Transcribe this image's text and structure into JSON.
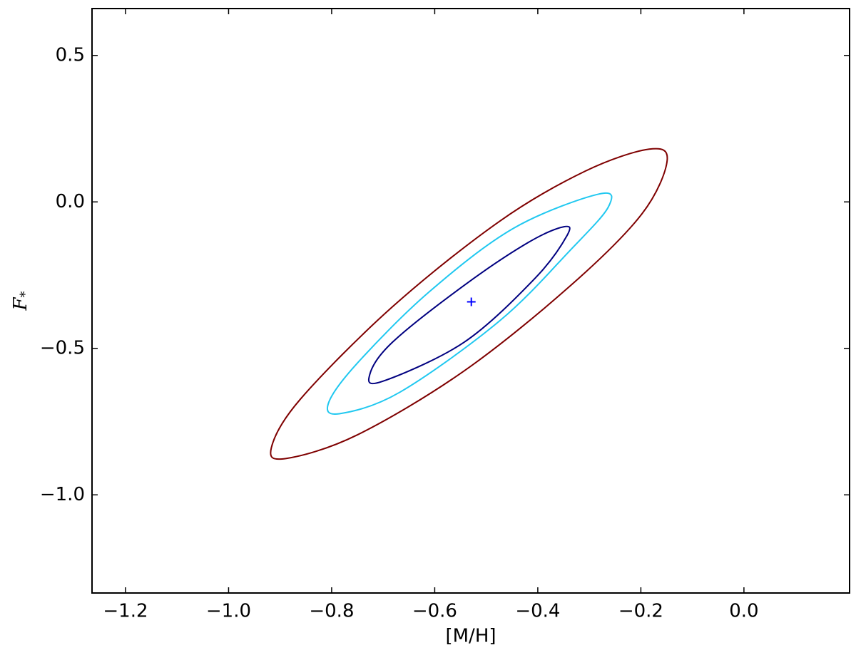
{
  "chart_data": {
    "type": "contour",
    "xlabel": "[M/H]",
    "ylabel": "F*",
    "xlim": [
      -1.265,
      0.205
    ],
    "ylim": [
      -1.335,
      0.66
    ],
    "xticks": [
      {
        "value": -1.2,
        "label": "−1.2"
      },
      {
        "value": -1.0,
        "label": "−1.0"
      },
      {
        "value": -0.8,
        "label": "−0.8"
      },
      {
        "value": -0.6,
        "label": "−0.6"
      },
      {
        "value": -0.4,
        "label": "−0.4"
      },
      {
        "value": -0.2,
        "label": "−0.2"
      },
      {
        "value": 0.0,
        "label": "0.0"
      }
    ],
    "yticks": [
      {
        "value": -1.0,
        "label": "−1.0"
      },
      {
        "value": -0.5,
        "label": "−0.5"
      },
      {
        "value": 0.0,
        "label": "0.0"
      },
      0.5
    ],
    "grid": false,
    "series": [
      {
        "color": "#7f0000",
        "x": [
          -0.184,
          -0.149,
          -0.198,
          -0.336,
          -0.543,
          -0.751,
          -0.889,
          -0.917,
          -0.861,
          -0.682,
          -0.474,
          -0.308
        ],
        "y": [
          0.18,
          0.141,
          -0.041,
          -0.285,
          -0.577,
          -0.796,
          -0.876,
          -0.839,
          -0.674,
          -0.358,
          -0.066,
          0.105
        ]
      },
      {
        "color": "#20c8f0",
        "x": [
          -0.281,
          -0.263,
          -0.336,
          -0.474,
          -0.668,
          -0.785,
          -0.806,
          -0.751,
          -0.612,
          -0.447
        ],
        "y": [
          0.027,
          -0.017,
          -0.163,
          -0.406,
          -0.65,
          -0.723,
          -0.686,
          -0.552,
          -0.309,
          -0.09
        ]
      },
      {
        "color": "#000080",
        "x": [
          -0.35,
          -0.343,
          -0.405,
          -0.543,
          -0.702,
          -0.726,
          -0.682,
          -0.543,
          -0.419
        ],
        "y": [
          -0.085,
          -0.114,
          -0.26,
          -0.479,
          -0.613,
          -0.589,
          -0.479,
          -0.285,
          -0.139
        ]
      }
    ],
    "marker": {
      "x": -0.529,
      "y": -0.341,
      "color": "#0000ff"
    }
  }
}
